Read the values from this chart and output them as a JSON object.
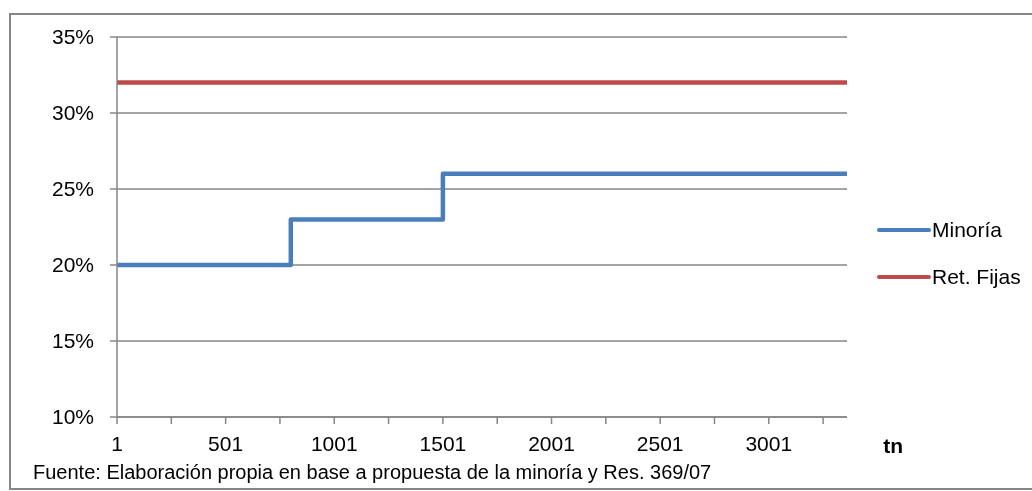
{
  "chart_data": {
    "type": "step",
    "xlabel": "tn",
    "annotations": [
      "Fuente: Elaboración propia en base a propuesta de la minoría y Res. 369/07"
    ],
    "series": [
      {
        "name": "Minoría",
        "color": "#4a7ebb",
        "x": [
          1,
          801,
          1501,
          3361
        ],
        "values": [
          20,
          23,
          26,
          26
        ]
      },
      {
        "name": "Ret. Fijas",
        "color": "#be4b48",
        "x": [
          1,
          3361
        ],
        "values": [
          32,
          32
        ]
      }
    ],
    "xlim": [
      1,
      3361
    ],
    "xticks": [
      1,
      {
        "value": 251,
        "label": null
      },
      501,
      {
        "value": 751,
        "label": null
      },
      1001,
      {
        "value": 1251,
        "label": null
      },
      1501,
      {
        "value": 1751,
        "label": null
      },
      2001,
      {
        "value": 2251,
        "label": null
      },
      2501,
      {
        "value": 2751,
        "label": null
      },
      3001,
      {
        "value": 3251,
        "label": null
      }
    ],
    "ylim": [
      10,
      35
    ],
    "yticks": [
      {
        "value": 10,
        "label": "10%"
      },
      {
        "value": 15,
        "label": "15%"
      },
      {
        "value": 20,
        "label": "20%"
      },
      {
        "value": 25,
        "label": "25%"
      },
      {
        "value": 30,
        "label": "30%"
      },
      {
        "value": 35,
        "label": "35%"
      }
    ],
    "grid": "y",
    "legend": "right"
  }
}
